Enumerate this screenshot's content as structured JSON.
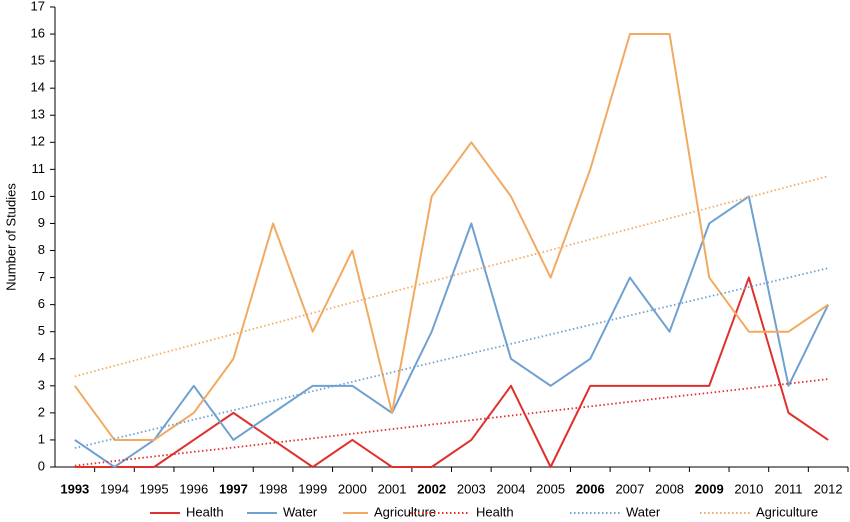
{
  "chart_data": {
    "type": "line",
    "y_label": "Number of Studies",
    "categories": [
      "1993",
      "1994",
      "1995",
      "1996",
      "1997",
      "1998",
      "1999",
      "2000",
      "2001",
      "2002",
      "2003",
      "2004",
      "2005",
      "2006",
      "2007",
      "2008",
      "2009",
      "2010",
      "2011",
      "2012"
    ],
    "emphasized_categories": [
      0,
      4,
      9,
      13,
      16
    ],
    "ylim": [
      0,
      17
    ],
    "yticks": [
      0,
      1,
      2,
      3,
      4,
      5,
      6,
      7,
      8,
      9,
      10,
      11,
      12,
      13,
      14,
      15,
      16,
      17
    ],
    "series": [
      {
        "name": "Health",
        "color": "#e0302c",
        "style": "solid",
        "values": [
          0,
          0,
          0,
          1,
          2,
          1,
          0,
          1,
          0,
          0,
          1,
          3,
          0,
          3,
          3,
          3,
          3,
          7,
          2,
          1
        ]
      },
      {
        "name": "Water",
        "color": "#6fa0d2",
        "style": "solid",
        "values": [
          1,
          0,
          1,
          3,
          1,
          2,
          3,
          3,
          2,
          5,
          9,
          4,
          3,
          4,
          7,
          5,
          9,
          10,
          3,
          6
        ]
      },
      {
        "name": "Agriculture",
        "color": "#f2aa62",
        "style": "solid",
        "values": [
          3,
          1,
          1,
          2,
          4,
          9,
          5,
          8,
          2,
          10,
          12,
          10,
          7,
          11,
          16,
          16,
          7,
          5,
          5,
          6
        ]
      },
      {
        "name": "Health",
        "color": "#e0302c",
        "style": "dotted",
        "values": [
          0.05,
          0.22,
          0.39,
          0.56,
          0.72,
          0.89,
          1.06,
          1.23,
          1.4,
          1.57,
          1.73,
          1.9,
          2.07,
          2.24,
          2.41,
          2.58,
          2.74,
          2.91,
          3.08,
          3.25
        ]
      },
      {
        "name": "Water",
        "color": "#6fa0d2",
        "style": "dotted",
        "values": [
          0.7,
          1.05,
          1.4,
          1.75,
          2.1,
          2.45,
          2.8,
          3.15,
          3.5,
          3.85,
          4.2,
          4.55,
          4.9,
          5.25,
          5.6,
          5.95,
          6.3,
          6.65,
          7.0,
          7.35
        ]
      },
      {
        "name": "Agriculture",
        "color": "#f2aa62",
        "style": "dotted",
        "values": [
          3.35,
          3.74,
          4.13,
          4.52,
          4.91,
          5.3,
          5.69,
          6.08,
          6.47,
          6.86,
          7.25,
          7.63,
          8.02,
          8.41,
          8.8,
          9.19,
          9.58,
          9.97,
          10.36,
          10.75
        ]
      }
    ]
  }
}
